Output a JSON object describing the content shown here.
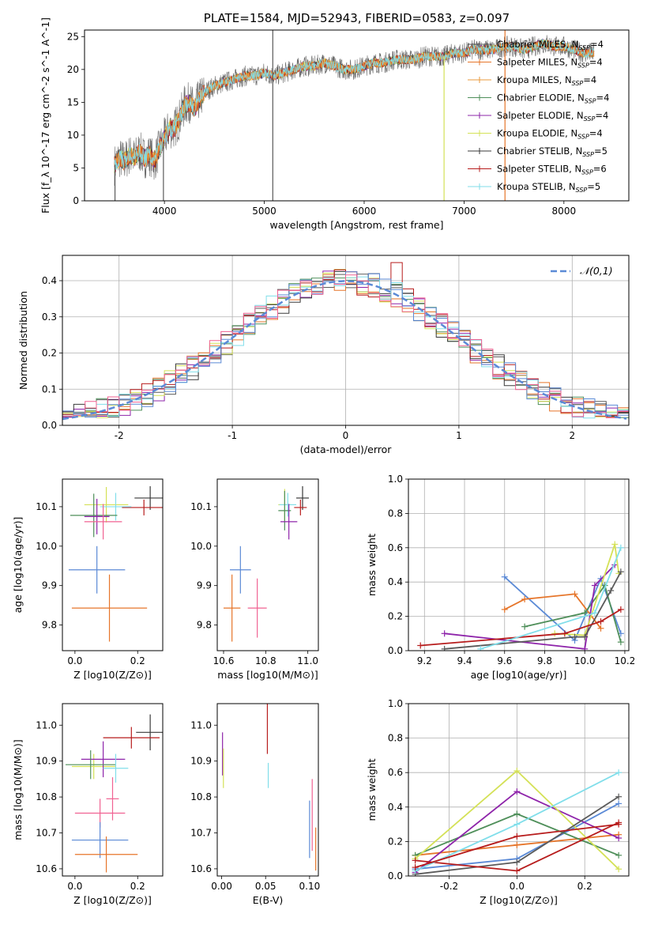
{
  "chart_data": [
    {
      "type": "line",
      "panel": "spectrum",
      "title": "PLATE=1584, MJD=52943, FIBERID=0583, z=0.097",
      "xlabel": "wavelength [Angstrom, rest frame]",
      "ylabel": "Flux [f_λ 10^-17 erg cm^-2 s^-1 A^-1]",
      "xlim": [
        3200,
        8650
      ],
      "ylim": [
        0,
        26
      ],
      "xticks": [
        4000,
        5000,
        6000,
        7000,
        8000
      ],
      "yticks": [
        0,
        5,
        10,
        15,
        20,
        25
      ],
      "grid": false,
      "legend_position": "top-right",
      "legend_labels": [
        "Chabrier MILES, N_SSP=4",
        "Salpeter MILES, N_SSP=4",
        "Kroupa MILES, N_SSP=4",
        "Chabrier ELODIE, N_SSP=4",
        "Salpeter ELODIE, N_SSP=4",
        "Kroupa ELODIE, N_SSP=4",
        "Chabrier STELIB, N_SSP=5",
        "Salpeter STELIB, N_SSP=6",
        "Kroupa STELIB, N_SSP=5"
      ],
      "spectrum": {
        "x": [
          3500,
          3550,
          3600,
          3650,
          3700,
          3750,
          3800,
          3850,
          3900,
          3950,
          4000,
          4050,
          4100,
          4150,
          4200,
          4250,
          4300,
          4350,
          4400,
          4450,
          4500,
          4600,
          4700,
          4800,
          4900,
          5000,
          5100,
          5200,
          5300,
          5400,
          5500,
          5600,
          5700,
          5800,
          5900,
          6000,
          6100,
          6200,
          6300,
          6400,
          6500,
          6600,
          6700,
          6800,
          6900,
          7000,
          7100,
          7200,
          7300,
          7400,
          7500,
          7600,
          7700,
          7800,
          7900,
          8000,
          8100,
          8200,
          8300
        ],
        "y": [
          5.5,
          6.5,
          6.0,
          7.0,
          6.5,
          7.5,
          6.5,
          7.0,
          6.0,
          8.0,
          9.5,
          11.0,
          11.0,
          12.5,
          14.5,
          15.0,
          14.0,
          15.5,
          16.5,
          17.0,
          17.5,
          18.0,
          18.5,
          19.0,
          19.0,
          19.5,
          19.0,
          19.5,
          20.0,
          20.5,
          20.5,
          21.0,
          20.5,
          20.0,
          20.0,
          20.5,
          21.0,
          21.0,
          21.5,
          21.5,
          21.5,
          22.0,
          22.0,
          22.0,
          22.5,
          22.5,
          23.0,
          23.0,
          23.0,
          23.5,
          23.5,
          23.0,
          23.5,
          24.0,
          23.5,
          23.5,
          23.0,
          22.5,
          22.5
        ]
      },
      "spikes": [
        {
          "x": 3505,
          "from": 5.5,
          "to": 0
        },
        {
          "x": 3990,
          "from": 9.0,
          "to": 0
        },
        {
          "x": 5085,
          "from": 19.0,
          "to": 26
        },
        {
          "x": 5085,
          "from": 19.0,
          "to": 0
        },
        {
          "x": 6800,
          "from": 22.0,
          "to": 0
        },
        {
          "x": 7410,
          "from": 23.5,
          "to": 0
        },
        {
          "x": 7410,
          "from": 23.5,
          "to": 26
        }
      ]
    },
    {
      "type": "histogram",
      "panel": "residuals",
      "xlabel": "(data-model)/error",
      "ylabel": "Normed distribution",
      "xlim": [
        -2.5,
        2.5
      ],
      "ylim": [
        0,
        0.47
      ],
      "xticks": [
        -2,
        -1,
        0,
        1,
        2
      ],
      "yticks": [
        0.0,
        0.1,
        0.2,
        0.3,
        0.4
      ],
      "grid": true,
      "legend_position": "top-right",
      "legend_label": "𝒩(0,1)",
      "bin_width": 0.1
    },
    {
      "type": "scatter",
      "panel": "age-vs-Z",
      "xlabel": "Z [log10(Z/Z⊙)]",
      "ylabel": "age [log10(age/yr)]",
      "xlim": [
        -0.04,
        0.28
      ],
      "ylim": [
        9.735,
        10.17
      ],
      "xticks": [
        0.0,
        0.2
      ],
      "yticks": [
        9.8,
        9.9,
        10.0,
        10.1
      ],
      "points": [
        {
          "x": 0.24,
          "y": 10.122,
          "xerr": 0.05,
          "yerr": 0.03
        },
        {
          "x": 0.22,
          "y": 10.098,
          "xerr": 0.07,
          "yerr": 0.02
        },
        {
          "x": 0.1,
          "y": 10.105,
          "xerr": 0.07,
          "yerr": 0.045
        },
        {
          "x": 0.13,
          "y": 10.1,
          "xerr": 0.05,
          "yerr": 0.035
        },
        {
          "x": 0.06,
          "y": 10.078,
          "xerr": 0.075,
          "yerr": 0.055
        },
        {
          "x": 0.07,
          "y": 10.075,
          "xerr": 0.04,
          "yerr": 0.045
        },
        {
          "x": 0.09,
          "y": 10.062,
          "xerr": 0.06,
          "yerr": 0.045
        },
        {
          "x": 0.07,
          "y": 9.94,
          "xerr": 0.09,
          "yerr": 0.06
        },
        {
          "x": 0.11,
          "y": 9.843,
          "xerr": 0.12,
          "yerr": 0.085
        }
      ]
    },
    {
      "type": "scatter",
      "panel": "age-vs-mass",
      "xlabel": "mass [log10(M/M⊙)]",
      "ylabel": "",
      "xlim": [
        10.57,
        11.05
      ],
      "ylim": [
        9.735,
        10.17
      ],
      "xticks": [
        10.6,
        10.8,
        11.0
      ],
      "yticks": [
        9.8,
        9.9,
        10.0,
        10.1
      ],
      "points": [
        {
          "x": 10.975,
          "y": 10.122,
          "xerr": 0.03,
          "yerr": 0.03
        },
        {
          "x": 10.965,
          "y": 10.098,
          "xerr": 0.03,
          "yerr": 0.02
        },
        {
          "x": 10.89,
          "y": 10.105,
          "xerr": 0.03,
          "yerr": 0.04
        },
        {
          "x": 10.905,
          "y": 10.105,
          "xerr": 0.04,
          "yerr": 0.03
        },
        {
          "x": 10.89,
          "y": 10.09,
          "xerr": 0.03,
          "yerr": 0.05
        },
        {
          "x": 10.91,
          "y": 10.062,
          "xerr": 0.04,
          "yerr": 0.045
        },
        {
          "x": 10.68,
          "y": 9.94,
          "xerr": 0.05,
          "yerr": 0.06
        },
        {
          "x": 10.76,
          "y": 9.843,
          "xerr": 0.045,
          "yerr": 0.075
        },
        {
          "x": 10.64,
          "y": 9.843,
          "xerr": 0.04,
          "yerr": 0.085
        }
      ]
    },
    {
      "type": "line",
      "panel": "mass-weight-vs-age",
      "xlabel": "age [log10(age/yr)]",
      "ylabel": "mass weight",
      "xlim": [
        9.12,
        10.22
      ],
      "ylim": [
        0,
        1.0
      ],
      "xticks": [
        9.2,
        9.4,
        9.6,
        9.8,
        10.0,
        10.2
      ],
      "yticks": [
        0.0,
        0.2,
        0.4,
        0.6,
        0.8,
        1.0
      ],
      "grid": true,
      "series": [
        {
          "x": [
            9.6,
            9.95,
            10.08,
            10.18
          ],
          "y": [
            0.43,
            0.06,
            0.42,
            0.1
          ]
        },
        {
          "x": [
            9.6,
            9.7,
            9.95,
            10.08
          ],
          "y": [
            0.24,
            0.3,
            0.33,
            0.13
          ]
        },
        {
          "x": [
            9.7,
            10.0,
            10.1,
            10.18
          ],
          "y": [
            0.14,
            0.22,
            0.38,
            0.05
          ]
        },
        {
          "x": [
            9.3,
            10.0,
            10.05,
            10.15
          ],
          "y": [
            0.1,
            0.01,
            0.38,
            0.5
          ]
        },
        {
          "x": [
            9.85,
            10.0,
            10.15,
            10.17
          ],
          "y": [
            0.1,
            0.09,
            0.62,
            0.45
          ]
        },
        {
          "x": [
            9.3,
            9.95,
            10.0,
            10.13,
            10.18
          ],
          "y": [
            0.01,
            0.08,
            0.08,
            0.35,
            0.46
          ]
        },
        {
          "x": [
            9.18,
            9.9,
            10.08,
            10.18
          ],
          "y": [
            0.03,
            0.1,
            0.17,
            0.24
          ]
        },
        {
          "x": [
            9.48,
            10.05,
            10.18
          ],
          "y": [
            0.01,
            0.22,
            0.6
          ]
        }
      ]
    },
    {
      "type": "scatter",
      "panel": "mass-vs-Z",
      "xlabel": "Z [log10(Z/Z⊙)]",
      "ylabel": "mass [log10(M/M⊙)]",
      "xlim": [
        -0.04,
        0.28
      ],
      "ylim": [
        10.58,
        11.06
      ],
      "xticks": [
        0.0,
        0.2
      ],
      "yticks": [
        10.6,
        10.7,
        10.8,
        10.9,
        11.0
      ],
      "points": [
        {
          "x": 0.24,
          "y": 10.98,
          "xerr": 0.045,
          "yerr": 0.05
        },
        {
          "x": 0.18,
          "y": 10.965,
          "xerr": 0.09,
          "yerr": 0.03
        },
        {
          "x": 0.06,
          "y": 10.885,
          "xerr": 0.07,
          "yerr": 0.035
        },
        {
          "x": 0.09,
          "y": 10.905,
          "xerr": 0.07,
          "yerr": 0.05
        },
        {
          "x": 0.05,
          "y": 10.89,
          "xerr": 0.08,
          "yerr": 0.04
        },
        {
          "x": 0.13,
          "y": 10.88,
          "xerr": 0.04,
          "yerr": 0.04
        },
        {
          "x": 0.08,
          "y": 10.755,
          "xerr": 0.08,
          "yerr": 0.04
        },
        {
          "x": 0.12,
          "y": 10.795,
          "xerr": 0.02,
          "yerr": 0.06
        },
        {
          "x": 0.08,
          "y": 10.68,
          "xerr": 0.09,
          "yerr": 0.05
        },
        {
          "x": 0.1,
          "y": 10.64,
          "xerr": 0.1,
          "yerr": 0.05
        }
      ]
    },
    {
      "type": "errorbar",
      "panel": "mass-vs-EBV",
      "xlabel": "E(B-V)",
      "ylabel": "",
      "xlim": [
        -0.005,
        0.11
      ],
      "ylim": [
        10.58,
        11.06
      ],
      "xticks": [
        0.0,
        0.05,
        0.1
      ],
      "yticks": [
        10.6,
        10.7,
        10.8,
        10.9,
        11.0
      ],
      "points": [
        {
          "x": 0.001,
          "y": 10.92,
          "yerr": 0.06
        },
        {
          "x": 0.002,
          "y": 10.88,
          "yerr": 0.055
        },
        {
          "x": 0.052,
          "y": 11.02,
          "yerr": 0.1
        },
        {
          "x": 0.053,
          "y": 10.86,
          "yerr": 0.035
        },
        {
          "x": 0.1,
          "y": 10.71,
          "yerr": 0.08
        },
        {
          "x": 0.103,
          "y": 10.75,
          "yerr": 0.1
        },
        {
          "x": 0.107,
          "y": 10.655,
          "yerr": 0.06
        }
      ]
    },
    {
      "type": "line",
      "panel": "mass-weight-vs-Z",
      "xlabel": "Z [log10(Z/Z⊙)]",
      "ylabel": "mass weight",
      "xlim": [
        -0.32,
        0.33
      ],
      "ylim": [
        0,
        1.0
      ],
      "xticks": [
        -0.2,
        0.0,
        0.2
      ],
      "yticks": [
        0.0,
        0.2,
        0.4,
        0.6,
        0.8,
        1.0
      ],
      "grid": true,
      "series": [
        {
          "x": [
            -0.3,
            0.0,
            0.3
          ],
          "y": [
            0.04,
            0.1,
            0.42
          ]
        },
        {
          "x": [
            -0.3,
            0.0,
            0.3
          ],
          "y": [
            0.12,
            0.18,
            0.24
          ]
        },
        {
          "x": [
            -0.3,
            0.0,
            0.3
          ],
          "y": [
            0.12,
            0.36,
            0.12
          ]
        },
        {
          "x": [
            -0.3,
            0.0,
            0.3
          ],
          "y": [
            0.02,
            0.49,
            0.22
          ]
        },
        {
          "x": [
            -0.3,
            0.0,
            0.3
          ],
          "y": [
            0.1,
            0.61,
            0.04
          ]
        },
        {
          "x": [
            -0.3,
            0.0,
            0.3
          ],
          "y": [
            0.01,
            0.08,
            0.46
          ]
        },
        {
          "x": [
            -0.3,
            0.0,
            0.3
          ],
          "y": [
            0.09,
            0.03,
            0.31
          ]
        },
        {
          "x": [
            -0.3,
            0.0,
            0.3
          ],
          "y": [
            0.03,
            0.3,
            0.6
          ]
        },
        {
          "x": [
            -0.3,
            0.0,
            0.3
          ],
          "y": [
            0.05,
            0.23,
            0.3
          ]
        }
      ]
    }
  ],
  "colors": [
    "#5a5a5a",
    "#e6752a",
    "#e89a3c",
    "#4f8f5a",
    "#8e24aa",
    "#d4e157",
    "#3a3a3a",
    "#b71c1c",
    "#80deea",
    "#5b8ad6",
    "#f06292"
  ]
}
